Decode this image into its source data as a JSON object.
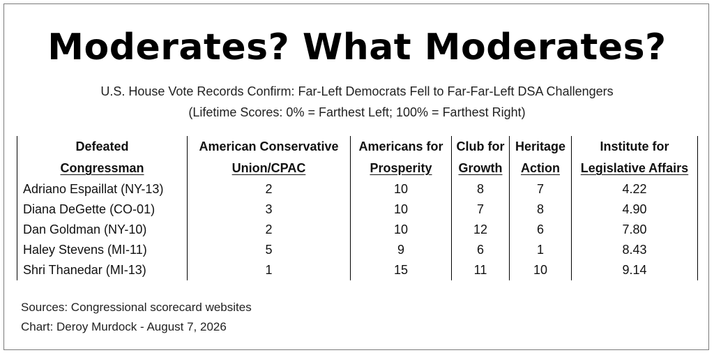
{
  "title": "Moderates? What Moderates?",
  "subtitle_line1": "U.S. House Vote Records Confirm: Far-Left Democrats Fell to Far-Far-Left DSA Challengers",
  "subtitle_line2": "(Lifetime Scores: 0% = Farthest Left; 100% = Farthest Right)",
  "chart_data": {
    "type": "table",
    "columns": [
      {
        "line1": "Defeated",
        "line2": "Congressman"
      },
      {
        "line1": "American Conservative",
        "line2": "Union/CPAC"
      },
      {
        "line1": "Americans for",
        "line2": "Prosperity"
      },
      {
        "line1": "Club for",
        "line2": "Growth"
      },
      {
        "line1": "Heritage",
        "line2": "Action"
      },
      {
        "line1": "Institute for",
        "line2": "Legislative Affairs"
      }
    ],
    "rows": [
      [
        "Adriano Espaillat (NY-13)",
        "2",
        "10",
        "8",
        "7",
        "4.22"
      ],
      [
        "Diana DeGette (CO-01)",
        "3",
        "10",
        "7",
        "8",
        "4.90"
      ],
      [
        "Dan Goldman (NY-10)",
        "2",
        "10",
        "12",
        "6",
        "7.80"
      ],
      [
        "Haley Stevens (MI-11)",
        "5",
        "9",
        "6",
        "1",
        "8.43"
      ],
      [
        "Shri Thanedar (MI-13)",
        "1",
        "15",
        "11",
        "10",
        "9.14"
      ]
    ]
  },
  "footer_sources": "Sources: Congressional scorecard websites",
  "footer_chart": "Chart: Deroy Murdock - August 7, 2026"
}
